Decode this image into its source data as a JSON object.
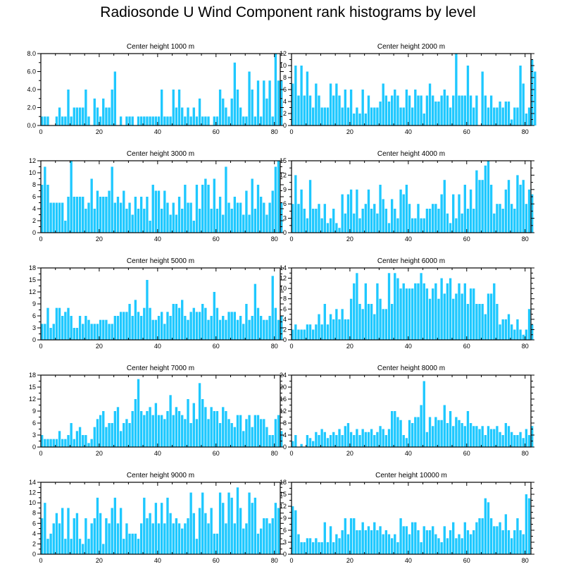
{
  "figure_title": "Radiosonde U Wind Component rank histograms by level",
  "bar_color": "#1EC8FF",
  "chart_data": [
    {
      "type": "bar",
      "title": "Center height 1000 m",
      "xlim": [
        0,
        82
      ],
      "xticks": [
        0,
        20,
        40,
        60,
        80
      ],
      "ylim": [
        0,
        8
      ],
      "yticks": [
        "0.0",
        "2.0",
        "4.0",
        "6.0",
        "8.0"
      ],
      "values": [
        1,
        1,
        1,
        0,
        0,
        1,
        2,
        1,
        1,
        4,
        1,
        2,
        2,
        2,
        2,
        4,
        1,
        0,
        3,
        2,
        1,
        3,
        2,
        2,
        4,
        6,
        0,
        1,
        0,
        1,
        1,
        1,
        0,
        1,
        1,
        1,
        1,
        1,
        1,
        1,
        1,
        4,
        1,
        1,
        1,
        4,
        2,
        4,
        2,
        1,
        2,
        1,
        2,
        1,
        3,
        1,
        1,
        1,
        0,
        1,
        1,
        4,
        3,
        2,
        1,
        3,
        7,
        4,
        2,
        1,
        1,
        6,
        4,
        1,
        5,
        1,
        5,
        3,
        5,
        1,
        8,
        5,
        5
      ]
    },
    {
      "type": "bar",
      "title": "Center height 2000 m",
      "xlim": [
        0,
        82
      ],
      "xticks": [
        0,
        20,
        40,
        60,
        80
      ],
      "ylim": [
        0,
        12
      ],
      "yticks": [
        "0",
        "2",
        "4",
        "6",
        "8",
        "10",
        "12"
      ],
      "values": [
        7,
        10,
        5,
        10,
        5,
        9,
        5,
        3,
        7,
        5,
        3,
        3,
        3,
        7,
        5,
        7,
        5,
        3,
        6,
        3,
        6,
        2,
        3,
        2,
        6,
        2,
        5,
        3,
        3,
        3,
        4,
        7,
        5,
        4,
        5,
        6,
        5,
        3,
        3,
        6,
        5,
        3,
        6,
        5,
        5,
        2,
        5,
        7,
        5,
        4,
        4,
        5,
        6,
        5,
        3,
        5,
        12,
        5,
        5,
        5,
        10,
        5,
        3,
        5,
        0,
        9,
        5,
        3,
        5,
        3,
        3,
        4,
        3,
        4,
        4,
        1,
        3,
        3,
        10,
        7,
        2,
        3,
        11,
        9
      ]
    },
    {
      "type": "bar",
      "title": "Center height 3000 m",
      "xlim": [
        0,
        82
      ],
      "xticks": [
        0,
        20,
        40,
        60,
        80
      ],
      "ylim": [
        0,
        12
      ],
      "yticks": [
        "0",
        "2",
        "4",
        "6",
        "8",
        "10",
        "12"
      ],
      "values": [
        8,
        11,
        8,
        5,
        5,
        5,
        5,
        5,
        2,
        6,
        12,
        6,
        6,
        6,
        6,
        4,
        5,
        9,
        4,
        7,
        6,
        6,
        6,
        7,
        11,
        5,
        6,
        5,
        7,
        4,
        5,
        3,
        6,
        4,
        6,
        4,
        6,
        2,
        8,
        7,
        7,
        4,
        7,
        5,
        3,
        5,
        3,
        6,
        4,
        8,
        5,
        5,
        2,
        8,
        4,
        8,
        9,
        8,
        4,
        9,
        4,
        6,
        3,
        11,
        5,
        4,
        6,
        5,
        5,
        3,
        7,
        3,
        9,
        4,
        8,
        6,
        5,
        3,
        5,
        7,
        11,
        12,
        5
      ]
    },
    {
      "type": "bar",
      "title": "Center height 4000 m",
      "xlim": [
        0,
        82
      ],
      "xticks": [
        0,
        20,
        40,
        60,
        80
      ],
      "ylim": [
        0,
        15
      ],
      "yticks": [
        "0",
        "3",
        "6",
        "9",
        "12",
        "15"
      ],
      "values": [
        6,
        12,
        6,
        9,
        5,
        3,
        11,
        5,
        5,
        6,
        3,
        6,
        2,
        3,
        5,
        2,
        1,
        8,
        4,
        8,
        9,
        4,
        9,
        3,
        5,
        6,
        9,
        5,
        6,
        4,
        10,
        7,
        5,
        2,
        7,
        5,
        3,
        9,
        8,
        10,
        6,
        3,
        3,
        6,
        3,
        3,
        5,
        5,
        6,
        6,
        5,
        8,
        11,
        4,
        2,
        8,
        3,
        8,
        4,
        10,
        5,
        9,
        5,
        13,
        11,
        11,
        14,
        15,
        10,
        4,
        6,
        6,
        5,
        9,
        11,
        6,
        5,
        12,
        10,
        11,
        6,
        9,
        8
      ]
    },
    {
      "type": "bar",
      "title": "Center height 5000 m",
      "xlim": [
        0,
        82
      ],
      "xticks": [
        0,
        20,
        40,
        60,
        80
      ],
      "ylim": [
        0,
        18
      ],
      "yticks": [
        "0",
        "3",
        "6",
        "9",
        "12",
        "15",
        "18"
      ],
      "values": [
        4,
        4,
        8,
        3,
        4,
        8,
        8,
        6,
        7,
        8,
        6,
        3,
        3,
        6,
        4,
        6,
        5,
        4,
        4,
        4,
        5,
        5,
        5,
        4,
        4,
        6,
        6,
        7,
        7,
        7,
        9,
        6,
        10,
        7,
        6,
        8,
        15,
        8,
        5,
        5,
        6,
        7,
        4,
        7,
        6,
        9,
        9,
        8,
        10,
        6,
        5,
        7,
        8,
        7,
        7,
        9,
        8,
        5,
        6,
        12,
        8,
        5,
        6,
        5,
        7,
        7,
        7,
        5,
        6,
        4,
        9,
        5,
        6,
        14,
        8,
        6,
        5,
        5,
        6,
        16,
        8,
        5,
        6
      ]
    },
    {
      "type": "bar",
      "title": "Center height 6000 m",
      "xlim": [
        0,
        82
      ],
      "xticks": [
        0,
        20,
        40,
        60,
        80
      ],
      "ylim": [
        0,
        14
      ],
      "yticks": [
        "0",
        "2",
        "4",
        "6",
        "8",
        "10",
        "12",
        "14"
      ],
      "values": [
        2,
        3,
        2,
        2,
        2,
        3,
        3,
        2,
        3,
        5,
        3,
        7,
        3,
        5,
        4,
        6,
        4,
        6,
        4,
        4,
        8,
        11,
        13,
        7,
        6,
        11,
        7,
        7,
        5,
        11,
        8,
        6,
        6,
        13,
        7,
        13,
        12,
        10,
        11,
        10,
        10,
        10,
        11,
        11,
        13,
        11,
        10,
        8,
        10,
        11,
        8,
        12,
        9,
        11,
        12,
        8,
        9,
        11,
        9,
        11,
        7,
        10,
        10,
        7,
        7,
        7,
        5,
        9,
        9,
        11,
        7,
        3,
        4,
        4,
        5,
        3,
        2,
        4,
        2,
        1,
        2,
        6,
        3
      ]
    },
    {
      "type": "bar",
      "title": "Center height 7000 m",
      "xlim": [
        0,
        82
      ],
      "xticks": [
        0,
        20,
        40,
        60,
        80
      ],
      "ylim": [
        0,
        18
      ],
      "yticks": [
        "0",
        "3",
        "6",
        "9",
        "12",
        "15",
        "18"
      ],
      "values": [
        3,
        2,
        2,
        2,
        2,
        2,
        4,
        2,
        2,
        3,
        6,
        2,
        4,
        5,
        3,
        3,
        1,
        2,
        5,
        7,
        8,
        9,
        5,
        6,
        6,
        9,
        10,
        4,
        6,
        7,
        6,
        9,
        12,
        17,
        9,
        8,
        9,
        10,
        8,
        11,
        8,
        8,
        7,
        9,
        13,
        8,
        10,
        9,
        8,
        7,
        12,
        6,
        11,
        7,
        16,
        12,
        10,
        7,
        10,
        9,
        9,
        6,
        10,
        9,
        7,
        6,
        5,
        8,
        8,
        4,
        7,
        8,
        5,
        8,
        8,
        7,
        7,
        5,
        3,
        3,
        7,
        8,
        4
      ]
    },
    {
      "type": "bar",
      "title": "Center height 8000 m",
      "xlim": [
        0,
        82
      ],
      "xticks": [
        0,
        20,
        40,
        60,
        80
      ],
      "ylim": [
        0,
        24
      ],
      "yticks": [
        "0",
        "4",
        "8",
        "12",
        "16",
        "20",
        "24"
      ],
      "values": [
        2,
        4,
        0,
        1,
        0,
        4,
        3,
        2,
        5,
        4,
        6,
        5,
        3,
        4,
        5,
        4,
        6,
        4,
        7,
        8,
        5,
        4,
        6,
        4,
        6,
        5,
        5,
        6,
        4,
        5,
        7,
        6,
        4,
        6,
        12,
        12,
        10,
        9,
        4,
        3,
        9,
        8,
        10,
        10,
        14,
        22,
        5,
        10,
        7,
        10,
        9,
        9,
        14,
        8,
        12,
        7,
        10,
        9,
        8,
        7,
        12,
        8,
        7,
        7,
        6,
        7,
        4,
        7,
        6,
        6,
        7,
        5,
        4,
        8,
        7,
        5,
        4,
        4,
        5,
        3,
        6,
        4,
        7
      ]
    },
    {
      "type": "bar",
      "title": "Center height 9000 m",
      "xlim": [
        0,
        82
      ],
      "xticks": [
        0,
        20,
        40,
        60,
        80
      ],
      "ylim": [
        0,
        14
      ],
      "yticks": [
        "0",
        "2",
        "4",
        "6",
        "8",
        "10",
        "12",
        "14"
      ],
      "values": [
        7,
        10,
        3,
        4,
        6,
        8,
        6,
        9,
        3,
        9,
        3,
        7,
        8,
        3,
        2,
        7,
        3,
        6,
        7,
        11,
        8,
        2,
        7,
        6,
        9,
        11,
        6,
        9,
        3,
        6,
        4,
        4,
        4,
        3,
        6,
        11,
        7,
        8,
        6,
        10,
        6,
        10,
        6,
        11,
        8,
        6,
        7,
        6,
        5,
        6,
        7,
        12,
        8,
        3,
        9,
        12,
        8,
        6,
        9,
        4,
        4,
        12,
        10,
        6,
        12,
        11,
        6,
        13,
        9,
        5,
        6,
        12,
        10,
        11,
        4,
        5,
        7,
        7,
        6,
        7,
        10,
        9
      ]
    },
    {
      "type": "bar",
      "title": "Center height 10000 m",
      "xlim": [
        0,
        82
      ],
      "xticks": [
        0,
        20,
        40,
        60,
        80
      ],
      "ylim": [
        0,
        18
      ],
      "yticks": [
        "0",
        "3",
        "6",
        "9",
        "12",
        "15",
        "18"
      ],
      "values": [
        12,
        11,
        5,
        3,
        3,
        4,
        4,
        3,
        4,
        3,
        3,
        8,
        3,
        7,
        3,
        5,
        4,
        6,
        9,
        5,
        9,
        9,
        6,
        6,
        8,
        6,
        7,
        6,
        8,
        6,
        7,
        5,
        6,
        5,
        4,
        5,
        3,
        9,
        7,
        7,
        5,
        8,
        8,
        6,
        3,
        7,
        6,
        6,
        7,
        5,
        4,
        3,
        7,
        4,
        6,
        8,
        4,
        5,
        4,
        8,
        6,
        5,
        6,
        8,
        9,
        9,
        14,
        13,
        9,
        7,
        7,
        8,
        6,
        10,
        6,
        4,
        6,
        9,
        6,
        5,
        15,
        14
      ]
    }
  ]
}
